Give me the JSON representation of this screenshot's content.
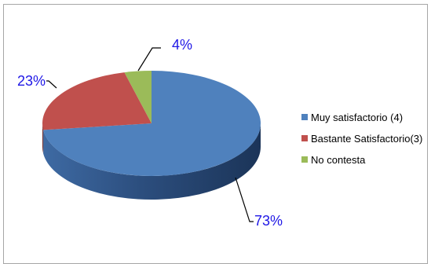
{
  "chart_data": {
    "type": "pie",
    "title": "",
    "categories": [
      "Muy satisfactorio (4)",
      "Bastante Satisfactorio(3)",
      "No contesta"
    ],
    "values": [
      73,
      23,
      4
    ],
    "data_labels": [
      "73%",
      "23%",
      "4%"
    ],
    "colors": [
      "#4f81bd",
      "#c0504d",
      "#9bbb59"
    ],
    "legend_position": "right",
    "label_color": "#1f17e6"
  }
}
